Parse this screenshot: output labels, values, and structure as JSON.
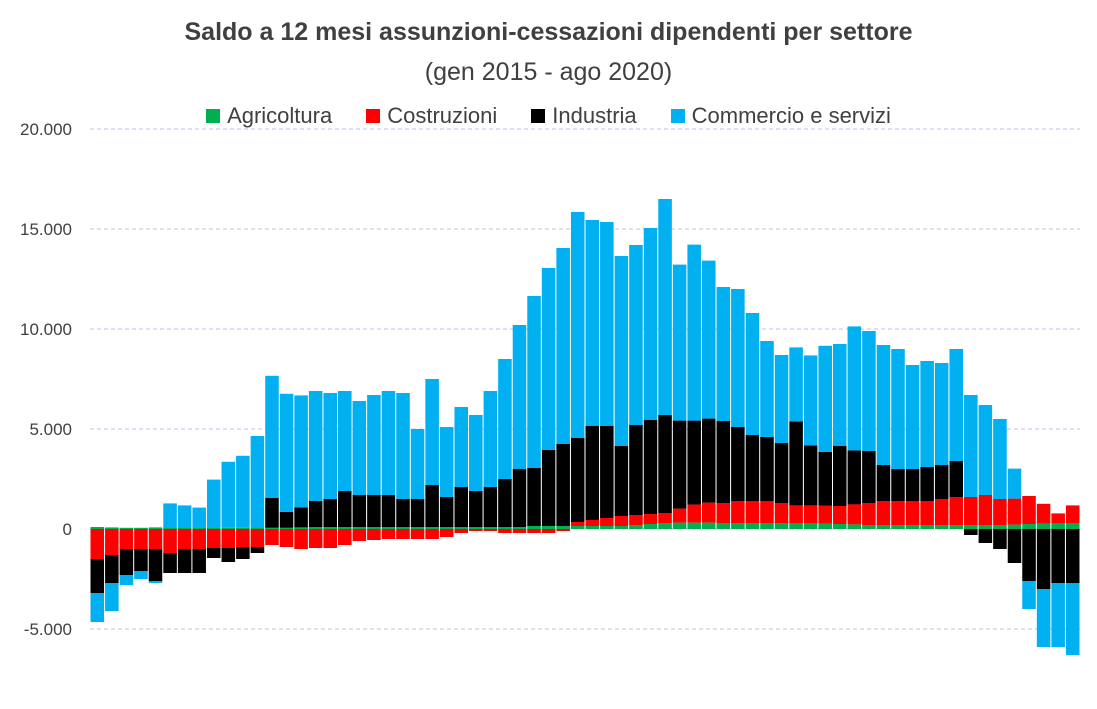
{
  "chart_data": {
    "type": "bar",
    "stacked": true,
    "title": "Saldo a 12 mesi assunzioni-cessazioni dipendenti per settore",
    "subtitle": "(gen 2015 - ago 2020)",
    "xlabel": "",
    "ylabel": "",
    "ylim": [
      -7000,
      20000
    ],
    "yticks": [
      20000,
      15000,
      10000,
      5000,
      0,
      -5000
    ],
    "ytick_labels": [
      "20.000",
      "15.000",
      "10.000",
      "5.000",
      "0",
      "-5.000"
    ],
    "grid": true,
    "legend_position": "top",
    "period_count": 68,
    "series": [
      {
        "name": "Agricoltura",
        "color": "#00b050",
        "values": [
          100,
          80,
          60,
          60,
          80,
          80,
          80,
          70,
          70,
          60,
          60,
          50,
          60,
          60,
          80,
          100,
          100,
          100,
          100,
          100,
          100,
          100,
          100,
          100,
          100,
          100,
          100,
          100,
          100,
          100,
          150,
          150,
          150,
          150,
          150,
          150,
          150,
          200,
          250,
          300,
          320,
          320,
          320,
          300,
          300,
          300,
          300,
          300,
          280,
          280,
          260,
          250,
          230,
          200,
          200,
          200,
          200,
          200,
          200,
          200,
          200,
          200,
          200,
          220,
          250,
          260,
          280,
          280
        ]
      },
      {
        "name": "Costruzioni",
        "color": "#ff0000",
        "values": [
          -1500,
          -1300,
          -1000,
          -1000,
          -1000,
          -1200,
          -1000,
          -1000,
          -950,
          -950,
          -900,
          -900,
          -800,
          -900,
          -1000,
          -950,
          -950,
          -800,
          -600,
          -550,
          -500,
          -500,
          -500,
          -500,
          -400,
          -200,
          -100,
          -100,
          -200,
          -200,
          -200,
          -200,
          -100,
          200,
          300,
          400,
          500,
          500,
          500,
          500,
          700,
          900,
          1000,
          1000,
          1100,
          1100,
          1100,
          1000,
          900,
          900,
          900,
          900,
          1000,
          1100,
          1200,
          1200,
          1200,
          1200,
          1300,
          1400,
          1400,
          1500,
          1300,
          1300,
          1400,
          1000,
          500,
          900
        ]
      },
      {
        "name": "Industria",
        "color": "#000000",
        "values": [
          -1700,
          -1400,
          -1300,
          -1100,
          -1600,
          -1000,
          -1200,
          -1200,
          -500,
          -700,
          -600,
          -300,
          1500,
          800,
          1000,
          1300,
          1400,
          1800,
          1600,
          1600,
          1600,
          1400,
          1400,
          2100,
          1500,
          2000,
          1800,
          2000,
          2400,
          2900,
          2900,
          3800,
          4100,
          4200,
          4700,
          4600,
          3500,
          4500,
          4700,
          4900,
          4400,
          4200,
          4200,
          4100,
          3700,
          3300,
          3200,
          3000,
          4200,
          3000,
          2700,
          3000,
          2700,
          2600,
          1800,
          1600,
          1600,
          1700,
          1700,
          1800,
          -300,
          -700,
          -1000,
          -1700,
          -2600,
          -3000,
          -2700,
          -2700
        ]
      },
      {
        "name": "Commercio e servizi",
        "color": "#00b0f0",
        "values": [
          -1450,
          -1400,
          -500,
          -400,
          -100,
          1200,
          1100,
          1000,
          2400,
          3300,
          3600,
          4600,
          6100,
          5900,
          5600,
          5500,
          5300,
          5000,
          4700,
          5000,
          5200,
          5300,
          3500,
          5300,
          3500,
          4000,
          3800,
          4800,
          6000,
          7200,
          8600,
          9100,
          9800,
          11300,
          10300,
          10200,
          9500,
          9000,
          9600,
          10800,
          7800,
          8800,
          7900,
          6700,
          6900,
          6100,
          4800,
          4400,
          3700,
          4500,
          5300,
          5100,
          6200,
          6000,
          6000,
          6000,
          5200,
          5300,
          5100,
          5600,
          5100,
          4500,
          4000,
          1500,
          -1400,
          -2900,
          -3200,
          -3600
        ]
      }
    ]
  }
}
